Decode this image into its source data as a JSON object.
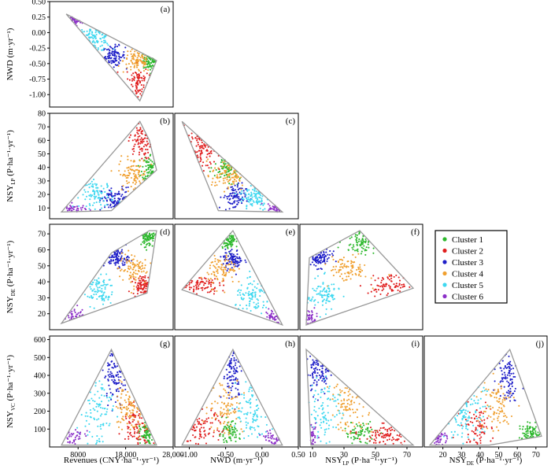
{
  "chart_data": {
    "type": "scatter",
    "layout": "lower-triangular scatter matrix (4 rows x 4 columns)",
    "legend": {
      "placement": "right, beside row 3",
      "entries": [
        {
          "name": "Cluster 1",
          "color": "#2db82d"
        },
        {
          "name": "Cluster 2",
          "color": "#e01f1f"
        },
        {
          "name": "Cluster 3",
          "color": "#1f1fc8"
        },
        {
          "name": "Cluster 4",
          "color": "#f0a030"
        },
        {
          "name": "Cluster 5",
          "color": "#3fd8f0"
        },
        {
          "name": "Cluster 6",
          "color": "#8c2fc8"
        }
      ]
    },
    "hull_color": "#999999",
    "variables": [
      {
        "key": "rev",
        "ylabel_main": "",
        "ylabel_sub": "",
        "ylabel_tail": "",
        "xlabel": "Revenues (CNY·ha⁻¹·yr⁻¹)",
        "xlim": [
          2000,
          28000
        ],
        "xticks": [
          8000,
          18000,
          28000
        ],
        "xticklabels": [
          "8000",
          "18,000",
          "28,000"
        ]
      },
      {
        "key": "nwd",
        "ylabel_main": "NWD (m·yr⁻¹)",
        "ylabel_sub": "",
        "ylabel_tail": "",
        "xlabel": "NWD (m·yr⁻¹)",
        "ylim": [
          -1.2,
          0.5
        ],
        "yticks": [
          -1.0,
          -0.75,
          -0.5,
          -0.25,
          0.0,
          0.25,
          0.5
        ],
        "yticklabels": [
          "-1.00",
          "-0.75",
          "-0.50",
          "-0.25",
          "0.00",
          "0.25",
          "0.50"
        ],
        "xlim": [
          -1.2,
          0.5
        ],
        "xticks": [
          -1.0,
          -0.5,
          0.0,
          0.5
        ],
        "xticklabels": [
          "-1.00",
          "-0.50",
          "0.00",
          "0.50"
        ]
      },
      {
        "key": "lp",
        "ylabel_main": "NSY",
        "ylabel_sub": "LP",
        "ylabel_tail": " (P·ha⁻¹·yr⁻¹)",
        "xlabel_main": "NSY",
        "xlabel_sub": "LP",
        "xlabel_tail": " (P·ha⁻¹·yr⁻¹)",
        "ylim": [
          2,
          80
        ],
        "yticks": [
          10,
          20,
          30,
          40,
          50,
          60,
          70,
          80
        ],
        "yticklabels": [
          "10",
          "20",
          "30",
          "40",
          "50",
          "60",
          "70",
          "80"
        ],
        "xlim": [
          2,
          80
        ],
        "xticks": [
          10,
          30,
          50,
          70
        ],
        "xticklabels": [
          "10",
          "30",
          "50",
          "70"
        ]
      },
      {
        "key": "de",
        "ylabel_main": "NSY",
        "ylabel_sub": "DE",
        "ylabel_tail": " (P·ha⁻¹·yr⁻¹)",
        "xlabel_main": "NSY",
        "xlabel_sub": "DE",
        "xlabel_tail": " (P·ha⁻¹·yr⁻¹)",
        "ylim": [
          10,
          76
        ],
        "yticks": [
          20,
          30,
          40,
          50,
          60,
          70
        ],
        "yticklabels": [
          "20",
          "30",
          "40",
          "50",
          "60",
          "70"
        ],
        "xlim": [
          10,
          76
        ],
        "xticks": [
          20,
          30,
          40,
          50,
          60,
          70
        ],
        "xticklabels": [
          "20",
          "30",
          "40",
          "50",
          "60",
          "70"
        ]
      },
      {
        "key": "vc",
        "ylabel_main": "NSY",
        "ylabel_sub": "VC",
        "ylabel_tail": " (P·ha⁻¹·yr⁻¹)",
        "ylim": [
          0,
          620
        ],
        "yticks": [
          100,
          200,
          300,
          400,
          500,
          600
        ],
        "yticklabels": [
          "100",
          "200",
          "300",
          "400",
          "500",
          "600"
        ]
      }
    ],
    "panels": [
      {
        "label": "(a)",
        "x": "rev",
        "y": "nwd",
        "row": 0,
        "col": 0,
        "hull": [
          [
            5500,
            0.3
          ],
          [
            24500,
            -0.45
          ],
          [
            21000,
            -1.1
          ]
        ],
        "clusters": [
          {
            "c": 1,
            "cx": 23500,
            "cy": -0.45,
            "sx": 900,
            "sy": 0.08,
            "n": 70
          },
          {
            "c": 2,
            "cx": 20500,
            "cy": -0.8,
            "sx": 1200,
            "sy": 0.14,
            "n": 80
          },
          {
            "c": 3,
            "cx": 15500,
            "cy": -0.38,
            "sx": 1200,
            "sy": 0.08,
            "n": 90
          },
          {
            "c": 4,
            "cx": 20500,
            "cy": -0.45,
            "sx": 1500,
            "sy": 0.1,
            "n": 90
          },
          {
            "c": 5,
            "cx": 11500,
            "cy": -0.1,
            "sx": 1700,
            "sy": 0.1,
            "n": 90
          },
          {
            "c": 6,
            "cx": 7000,
            "cy": 0.2,
            "sx": 1000,
            "sy": 0.05,
            "n": 35
          }
        ]
      },
      {
        "label": "(b)",
        "x": "rev",
        "y": "lp",
        "row": 1,
        "col": 0,
        "hull": [
          [
            4500,
            7
          ],
          [
            15000,
            8
          ],
          [
            24500,
            38
          ],
          [
            23000,
            60
          ],
          [
            21000,
            74
          ]
        ],
        "clusters": [
          {
            "c": 1,
            "cx": 23300,
            "cy": 40,
            "sx": 900,
            "sy": 5,
            "n": 70
          },
          {
            "c": 2,
            "cx": 21000,
            "cy": 60,
            "sx": 1200,
            "sy": 7,
            "n": 80
          },
          {
            "c": 3,
            "cx": 16000,
            "cy": 15,
            "sx": 1500,
            "sy": 5,
            "n": 90
          },
          {
            "c": 4,
            "cx": 19500,
            "cy": 35,
            "sx": 1500,
            "sy": 6,
            "n": 90
          },
          {
            "c": 5,
            "cx": 12000,
            "cy": 20,
            "sx": 1800,
            "sy": 5,
            "n": 90
          },
          {
            "c": 6,
            "cx": 7000,
            "cy": 9,
            "sx": 1300,
            "sy": 2,
            "n": 35
          }
        ]
      },
      {
        "label": "(c)",
        "x": "nwd",
        "y": "lp",
        "row": 1,
        "col": 1,
        "hull": [
          [
            -1.1,
            74
          ],
          [
            0.28,
            7
          ],
          [
            -0.6,
            8
          ]
        ],
        "clusters": [
          {
            "c": 1,
            "cx": -0.45,
            "cy": 40,
            "sx": 0.1,
            "sy": 5,
            "n": 70
          },
          {
            "c": 2,
            "cx": -0.85,
            "cy": 55,
            "sx": 0.14,
            "sy": 9,
            "n": 80
          },
          {
            "c": 3,
            "cx": -0.38,
            "cy": 18,
            "sx": 0.08,
            "sy": 5,
            "n": 90
          },
          {
            "c": 4,
            "cx": -0.45,
            "cy": 35,
            "sx": 0.12,
            "sy": 6,
            "n": 90
          },
          {
            "c": 5,
            "cx": -0.1,
            "cy": 18,
            "sx": 0.1,
            "sy": 5,
            "n": 90
          },
          {
            "c": 6,
            "cx": 0.2,
            "cy": 9,
            "sx": 0.06,
            "sy": 2,
            "n": 35
          }
        ]
      },
      {
        "label": "(d)",
        "x": "rev",
        "y": "de",
        "row": 2,
        "col": 0,
        "hull": [
          [
            4500,
            14
          ],
          [
            15000,
            58
          ],
          [
            23000,
            72
          ],
          [
            24500,
            72
          ],
          [
            22500,
            33
          ]
        ],
        "clusters": [
          {
            "c": 1,
            "cx": 23000,
            "cy": 68,
            "sx": 1000,
            "sy": 3,
            "n": 70
          },
          {
            "c": 2,
            "cx": 21500,
            "cy": 38,
            "sx": 1000,
            "sy": 3,
            "n": 80
          },
          {
            "c": 3,
            "cx": 16000,
            "cy": 55,
            "sx": 1300,
            "sy": 3,
            "n": 90
          },
          {
            "c": 4,
            "cx": 19500,
            "cy": 48,
            "sx": 1500,
            "sy": 5,
            "n": 90
          },
          {
            "c": 5,
            "cx": 12000,
            "cy": 35,
            "sx": 1800,
            "sy": 5,
            "n": 90
          },
          {
            "c": 6,
            "cx": 7000,
            "cy": 18,
            "sx": 1300,
            "sy": 3,
            "n": 35
          }
        ]
      },
      {
        "label": "(e)",
        "x": "nwd",
        "y": "de",
        "row": 2,
        "col": 1,
        "hull": [
          [
            -1.1,
            35
          ],
          [
            -0.4,
            72
          ],
          [
            0.28,
            13
          ]
        ],
        "clusters": [
          {
            "c": 1,
            "cx": -0.45,
            "cy": 67,
            "sx": 0.06,
            "sy": 3,
            "n": 70
          },
          {
            "c": 2,
            "cx": -0.9,
            "cy": 38,
            "sx": 0.15,
            "sy": 3,
            "n": 80
          },
          {
            "c": 3,
            "cx": -0.4,
            "cy": 54,
            "sx": 0.07,
            "sy": 3,
            "n": 90
          },
          {
            "c": 4,
            "cx": -0.55,
            "cy": 47,
            "sx": 0.1,
            "sy": 5,
            "n": 90
          },
          {
            "c": 5,
            "cx": -0.12,
            "cy": 30,
            "sx": 0.12,
            "sy": 5,
            "n": 90
          },
          {
            "c": 6,
            "cx": 0.18,
            "cy": 17,
            "sx": 0.07,
            "sy": 3,
            "n": 35
          }
        ]
      },
      {
        "label": "(f)",
        "x": "lp",
        "y": "de",
        "row": 2,
        "col": 2,
        "hull": [
          [
            6,
            13
          ],
          [
            8,
            55
          ],
          [
            40,
            72
          ],
          [
            74,
            36
          ]
        ],
        "clusters": [
          {
            "c": 1,
            "cx": 40,
            "cy": 66,
            "sx": 5,
            "sy": 4,
            "n": 70
          },
          {
            "c": 2,
            "cx": 60,
            "cy": 38,
            "sx": 7,
            "sy": 3,
            "n": 80
          },
          {
            "c": 3,
            "cx": 14,
            "cy": 55,
            "sx": 4,
            "sy": 3,
            "n": 90
          },
          {
            "c": 4,
            "cx": 33,
            "cy": 48,
            "sx": 6,
            "sy": 4,
            "n": 90
          },
          {
            "c": 5,
            "cx": 17,
            "cy": 32,
            "sx": 5,
            "sy": 5,
            "n": 90
          },
          {
            "c": 6,
            "cx": 9,
            "cy": 17,
            "sx": 2,
            "sy": 3,
            "n": 35
          }
        ]
      },
      {
        "label": "(g)",
        "x": "rev",
        "y": "vc",
        "row": 3,
        "col": 0,
        "hull": [
          [
            4500,
            10
          ],
          [
            15000,
            545
          ],
          [
            24500,
            10
          ]
        ],
        "clusters": [
          {
            "c": 1,
            "cx": 23000,
            "cy": 75,
            "sx": 1000,
            "sy": 30,
            "n": 70
          },
          {
            "c": 2,
            "cx": 20500,
            "cy": 120,
            "sx": 1500,
            "sy": 70,
            "n": 80
          },
          {
            "c": 3,
            "cx": 16000,
            "cy": 420,
            "sx": 1300,
            "sy": 80,
            "n": 90
          },
          {
            "c": 4,
            "cx": 19000,
            "cy": 230,
            "sx": 1600,
            "sy": 80,
            "n": 90
          },
          {
            "c": 5,
            "cx": 12000,
            "cy": 200,
            "sx": 1800,
            "sy": 110,
            "n": 90
          },
          {
            "c": 6,
            "cx": 7000,
            "cy": 50,
            "sx": 1200,
            "sy": 30,
            "n": 35
          }
        ]
      },
      {
        "label": "(h)",
        "x": "nwd",
        "y": "vc",
        "row": 3,
        "col": 1,
        "hull": [
          [
            -1.1,
            10
          ],
          [
            -0.4,
            545
          ],
          [
            0.28,
            10
          ]
        ],
        "clusters": [
          {
            "c": 1,
            "cx": -0.45,
            "cy": 80,
            "sx": 0.07,
            "sy": 30,
            "n": 70
          },
          {
            "c": 2,
            "cx": -0.85,
            "cy": 100,
            "sx": 0.15,
            "sy": 60,
            "n": 80
          },
          {
            "c": 3,
            "cx": -0.4,
            "cy": 420,
            "sx": 0.07,
            "sy": 80,
            "n": 90
          },
          {
            "c": 4,
            "cx": -0.5,
            "cy": 230,
            "sx": 0.12,
            "sy": 80,
            "n": 90
          },
          {
            "c": 5,
            "cx": -0.12,
            "cy": 200,
            "sx": 0.12,
            "sy": 100,
            "n": 90
          },
          {
            "c": 6,
            "cx": 0.18,
            "cy": 45,
            "sx": 0.07,
            "sy": 25,
            "n": 35
          }
        ]
      },
      {
        "label": "(i)",
        "x": "lp",
        "y": "vc",
        "row": 3,
        "col": 2,
        "hull": [
          [
            6,
            545
          ],
          [
            9,
            10
          ],
          [
            74,
            10
          ]
        ],
        "clusters": [
          {
            "c": 1,
            "cx": 40,
            "cy": 80,
            "sx": 5,
            "sy": 30,
            "n": 70
          },
          {
            "c": 2,
            "cx": 58,
            "cy": 60,
            "sx": 8,
            "sy": 35,
            "n": 80
          },
          {
            "c": 3,
            "cx": 14,
            "cy": 420,
            "sx": 4,
            "sy": 70,
            "n": 90
          },
          {
            "c": 4,
            "cx": 33,
            "cy": 230,
            "sx": 6,
            "sy": 70,
            "n": 90
          },
          {
            "c": 5,
            "cx": 18,
            "cy": 220,
            "sx": 5,
            "sy": 100,
            "n": 90
          },
          {
            "c": 6,
            "cx": 9,
            "cy": 60,
            "sx": 2,
            "sy": 30,
            "n": 35
          }
        ]
      },
      {
        "label": "(j)",
        "x": "de",
        "y": "vc",
        "row": 3,
        "col": 3,
        "hull": [
          [
            13,
            10
          ],
          [
            56,
            545
          ],
          [
            73,
            60
          ],
          [
            45,
            10
          ]
        ],
        "clusters": [
          {
            "c": 1,
            "cx": 67,
            "cy": 75,
            "sx": 3,
            "sy": 25,
            "n": 70
          },
          {
            "c": 2,
            "cx": 38,
            "cy": 110,
            "sx": 4,
            "sy": 60,
            "n": 80
          },
          {
            "c": 3,
            "cx": 55,
            "cy": 420,
            "sx": 3,
            "sy": 80,
            "n": 90
          },
          {
            "c": 4,
            "cx": 48,
            "cy": 230,
            "sx": 5,
            "sy": 80,
            "n": 90
          },
          {
            "c": 5,
            "cx": 32,
            "cy": 200,
            "sx": 5,
            "sy": 100,
            "n": 90
          },
          {
            "c": 6,
            "cx": 17,
            "cy": 45,
            "sx": 3,
            "sy": 25,
            "n": 35
          }
        ]
      }
    ]
  }
}
